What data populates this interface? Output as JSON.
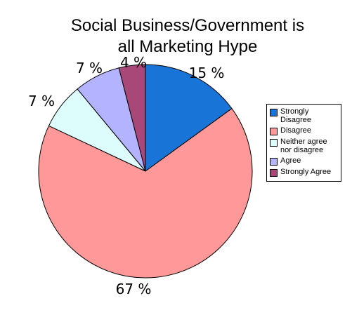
{
  "chart_data": {
    "type": "pie",
    "title_lines": [
      "Social Business/Government is",
      "all Marketing Hype"
    ],
    "categories": [
      "Strongly Disagree",
      "Disagree",
      "Neither agree nor disagree",
      "Agree",
      "Strongly Agree"
    ],
    "values": [
      15,
      67,
      7,
      7,
      4
    ],
    "data_labels": [
      "15 %",
      "67 %",
      "7 %",
      "7 %",
      "4 %"
    ],
    "colors": [
      "#1874d6",
      "#ff9999",
      "#ddfdfd",
      "#b3b3ff",
      "#a84878"
    ],
    "start": "12 o'clock, clockwise",
    "legend": {
      "position": "right",
      "items": [
        {
          "lines": [
            "Strongly",
            "Disagree"
          ],
          "color": "#1874d6"
        },
        {
          "lines": [
            "Disagree"
          ],
          "color": "#ff9999"
        },
        {
          "lines": [
            "Neither agree",
            "nor disagree"
          ],
          "color": "#ddfdfd"
        },
        {
          "lines": [
            "Agree"
          ],
          "color": "#b3b3ff"
        },
        {
          "lines": [
            "Strongly Agree"
          ],
          "color": "#a84878"
        }
      ]
    }
  }
}
